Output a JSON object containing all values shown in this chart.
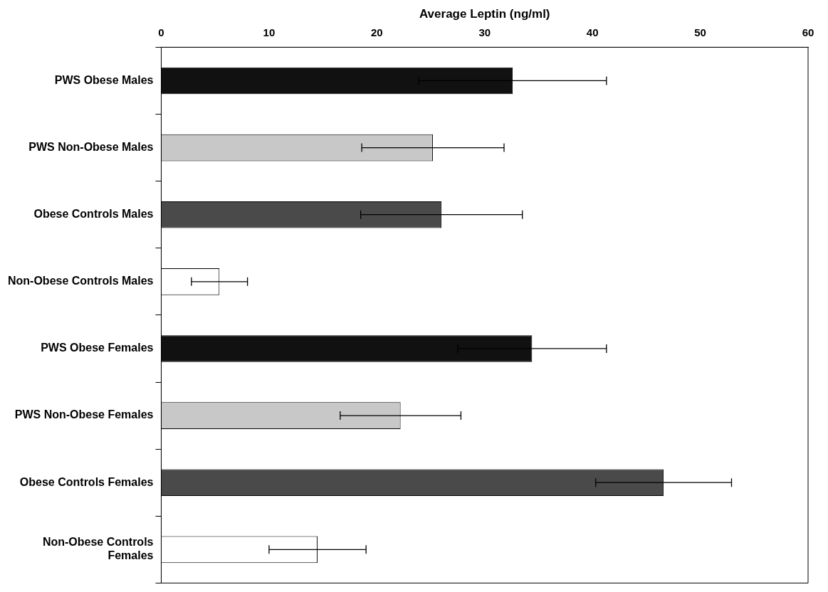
{
  "chart_data": {
    "type": "bar",
    "orientation": "horizontal",
    "xlabel": "Average Leptin (ng/ml)",
    "categories": [
      "PWS Obese Males",
      "PWS Non-Obese Males",
      "Obese Controls Males",
      "Non-Obese Controls Males",
      "PWS Obese Females",
      "PWS Non-Obese Females",
      "Obese Controls Females",
      "Non-Obese Controls Females"
    ],
    "values": [
      32.6,
      25.2,
      26.0,
      5.4,
      34.4,
      22.2,
      46.6,
      14.5
    ],
    "errors": [
      8.7,
      6.6,
      7.5,
      2.6,
      6.9,
      5.6,
      6.3,
      4.5
    ],
    "colors": [
      "#111111",
      "#c8c8c8",
      "#4a4a4a",
      "#ffffff",
      "#111111",
      "#c8c8c8",
      "#4a4a4a",
      "#ffffff"
    ],
    "xlim": [
      0,
      60
    ],
    "xticks": [
      0,
      10,
      20,
      30,
      40,
      50,
      60
    ],
    "grid": false,
    "legend": false
  }
}
